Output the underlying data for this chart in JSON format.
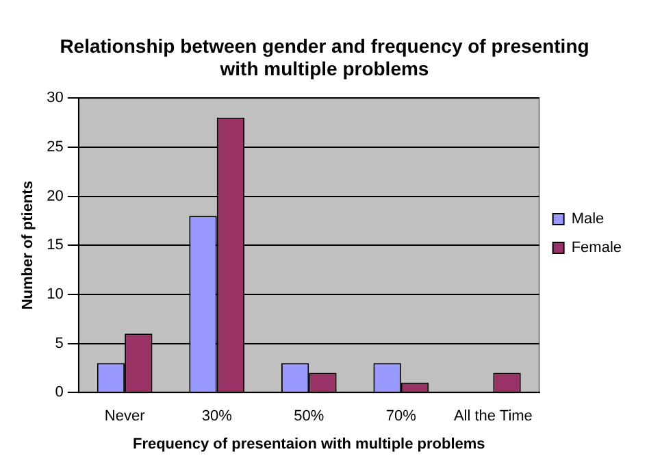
{
  "chart_data": {
    "type": "bar",
    "title": "Relationship between gender and frequency of presenting with multiple problems",
    "xlabel": "Frequency of presentaion with multiple problems",
    "ylabel": "Number of ptients",
    "categories": [
      "Never",
      "30%",
      "50%",
      "70%",
      "All the Time"
    ],
    "series": [
      {
        "name": "Male",
        "color": "#9999ff",
        "values": [
          3,
          18,
          3,
          3,
          0
        ]
      },
      {
        "name": "Female",
        "color": "#993366",
        "values": [
          6,
          28,
          2,
          1,
          2
        ]
      }
    ],
    "ylim": [
      0,
      30
    ],
    "yticks": [
      0,
      5,
      10,
      15,
      20,
      25,
      30
    ],
    "grid": "y",
    "legend": "right"
  }
}
